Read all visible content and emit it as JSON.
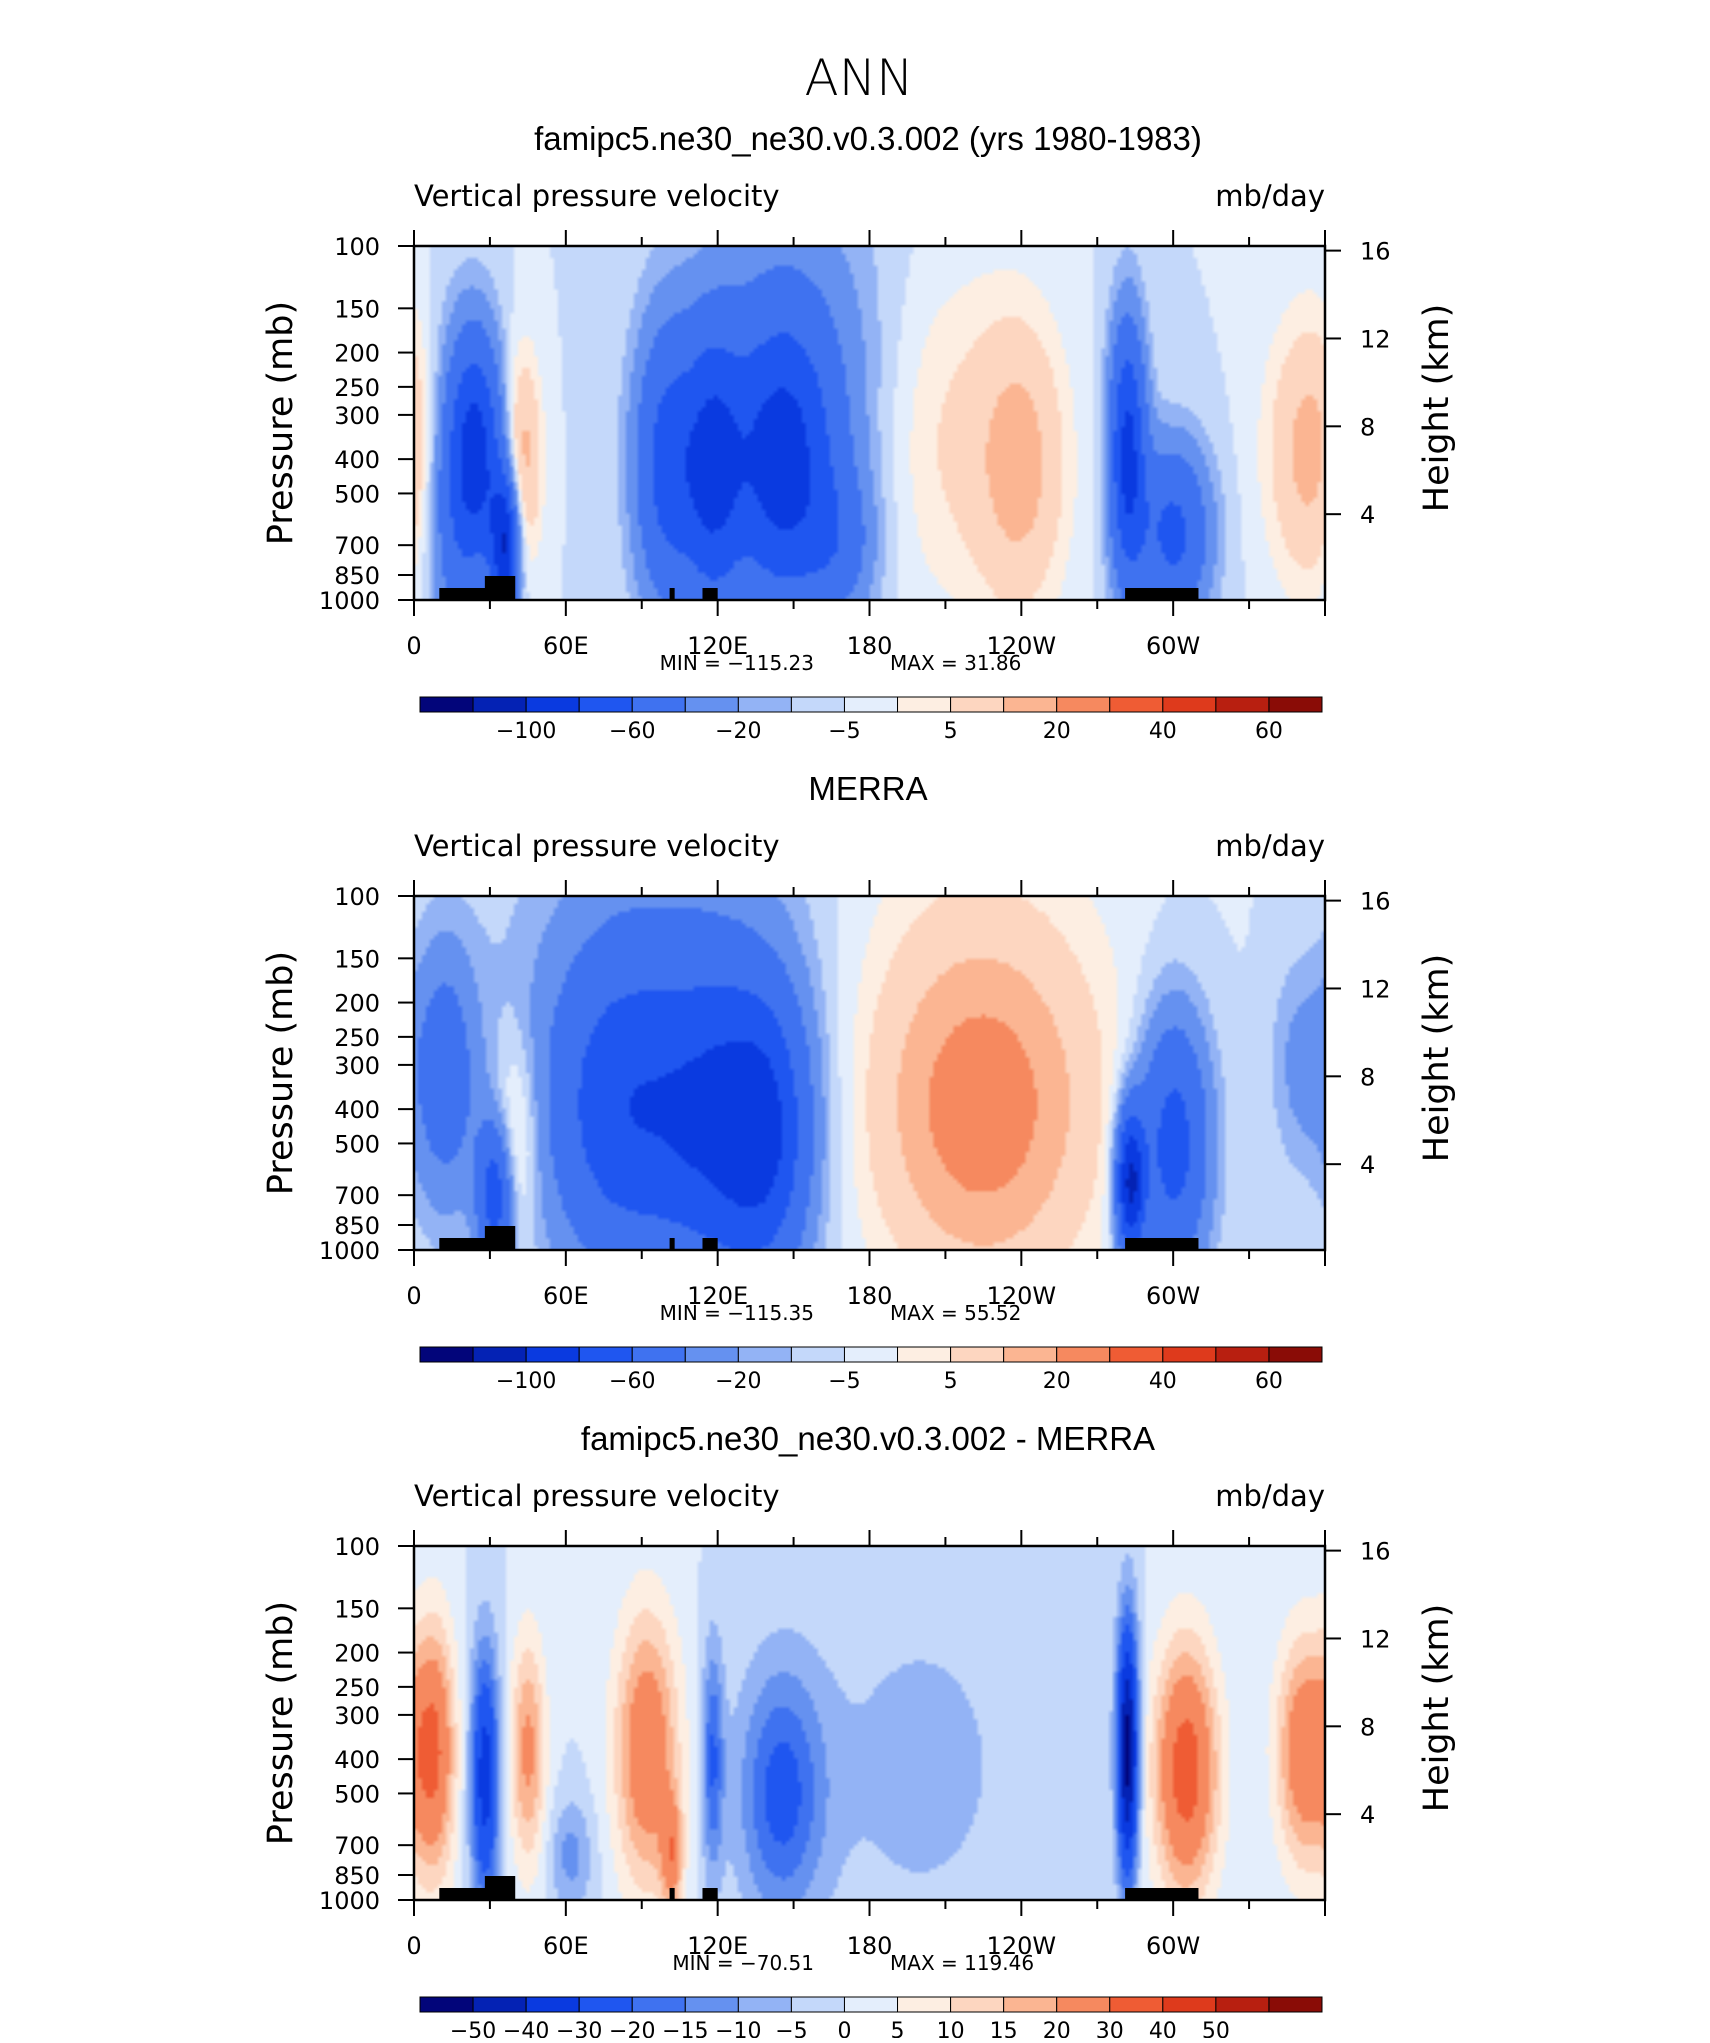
{
  "figure": {
    "season": "ANN",
    "panel_titles": [
      "famipc5.ne30_ne30.v0.3.002 (yrs 1980-1983)",
      "MERRA",
      "famipc5.ne30_ne30.v0.3.002 - MERRA"
    ]
  },
  "colors": {
    "abs_scale": [
      "#02057a",
      "#0422b4",
      "#0a3ae0",
      "#1f56f0",
      "#3f72f0",
      "#6591f0",
      "#93b3f5",
      "#c4d8fa",
      "#e4eefc",
      "#fdeee2",
      "#fdd6c0",
      "#fbb592",
      "#f6895f",
      "#ef5c34",
      "#de3a1c",
      "#b81f10",
      "#8a0c06"
    ],
    "diff_scale": [
      "#02057a",
      "#0422b4",
      "#0a3ae0",
      "#1f56f0",
      "#3f72f0",
      "#6591f0",
      "#93b3f5",
      "#c4d8fa",
      "#e4eefc",
      "#fdeee2",
      "#fdd6c0",
      "#fbb592",
      "#f6895f",
      "#ef5c34",
      "#de3a1c",
      "#b81f10",
      "#8a0c06"
    ],
    "topography": "#000000"
  },
  "chart_data": [
    {
      "type": "heatmap",
      "title": "famipc5.ne30_ne30.v0.3.002 (yrs 1980-1983)",
      "subtitle_left": "Vertical pressure velocity",
      "subtitle_right": "mb/day",
      "xlabel": "",
      "ylabel": "Pressure (mb)",
      "ylabel_right": "Height (km)",
      "x_ticks": [
        "0",
        "60E",
        "120E",
        "180",
        "120W",
        "60W"
      ],
      "x_tick_values": [
        0,
        60,
        120,
        180,
        240,
        300
      ],
      "xlim": [
        0,
        360
      ],
      "y_ticks": [
        "100",
        "150",
        "200",
        "250",
        "300",
        "400",
        "500",
        "700",
        "850",
        "1000"
      ],
      "y_tick_values": [
        100,
        150,
        200,
        250,
        300,
        400,
        500,
        700,
        850,
        1000
      ],
      "ylim": [
        1000,
        100
      ],
      "y_scale": "log",
      "y2_ticks": [
        "16",
        "12",
        "8",
        "4"
      ],
      "min_label": "MIN = −115.23",
      "max_label": "MAX =   31.86",
      "min": -115.23,
      "max": 31.86,
      "colorbar_labels": [
        "−100",
        "−60",
        "−20",
        "−5",
        "5",
        "20",
        "40",
        "60"
      ],
      "levels": [
        -120,
        -100,
        -80,
        -60,
        -40,
        -20,
        -10,
        -5,
        0,
        5,
        10,
        20,
        30,
        40,
        50,
        60,
        70
      ],
      "features": [
        {
          "lon": 25,
          "p": 380,
          "value": -60,
          "wlon": 7,
          "wp": 1.7
        },
        {
          "lon": 15,
          "p": 500,
          "value": -30,
          "wlon": 8,
          "wp": 2.0
        },
        {
          "lon": 36,
          "p": 700,
          "value": -75,
          "wlon": 4,
          "wp": 1.4
        },
        {
          "lon": 43,
          "p": 400,
          "value": 25,
          "wlon": 5,
          "wp": 1.6
        },
        {
          "lon": 100,
          "p": 420,
          "value": -45,
          "wlon": 9,
          "wp": 1.9
        },
        {
          "lon": 118,
          "p": 430,
          "value": -50,
          "wlon": 8,
          "wp": 1.9
        },
        {
          "lon": 145,
          "p": 420,
          "value": -55,
          "wlon": 14,
          "wp": 1.9
        },
        {
          "lon": 150,
          "p": 270,
          "value": -20,
          "wlon": 28,
          "wp": 2.6
        },
        {
          "lon": 168,
          "p": 700,
          "value": -20,
          "wlon": 10,
          "wp": 1.4
        },
        {
          "lon": 210,
          "p": 350,
          "value": 12,
          "wlon": 22,
          "wp": 2.2
        },
        {
          "lon": 240,
          "p": 420,
          "value": 22,
          "wlon": 12,
          "wp": 1.9
        },
        {
          "lon": 282,
          "p": 380,
          "value": -65,
          "wlon": 5,
          "wp": 1.8
        },
        {
          "lon": 300,
          "p": 650,
          "value": -45,
          "wlon": 10,
          "wp": 1.5
        },
        {
          "lon": 355,
          "p": 380,
          "value": 25,
          "wlon": 12,
          "wp": 1.8
        }
      ]
    },
    {
      "type": "heatmap",
      "title": "MERRA",
      "subtitle_left": "Vertical pressure velocity",
      "subtitle_right": "mb/day",
      "xlabel": "",
      "ylabel": "Pressure (mb)",
      "ylabel_right": "Height (km)",
      "x_ticks": [
        "0",
        "60E",
        "120E",
        "180",
        "120W",
        "60W"
      ],
      "x_tick_values": [
        0,
        60,
        120,
        180,
        240,
        300
      ],
      "xlim": [
        0,
        360
      ],
      "y_ticks": [
        "100",
        "150",
        "200",
        "250",
        "300",
        "400",
        "500",
        "700",
        "850",
        "1000"
      ],
      "y_tick_values": [
        100,
        150,
        200,
        250,
        300,
        400,
        500,
        700,
        850,
        1000
      ],
      "ylim": [
        1000,
        100
      ],
      "y_scale": "log",
      "y2_ticks": [
        "16",
        "12",
        "8",
        "4"
      ],
      "min_label": "MIN = −115.35",
      "max_label": "MAX =   55.52",
      "min": -115.35,
      "max": 55.52,
      "colorbar_labels": [
        "−100",
        "−60",
        "−20",
        "−5",
        "5",
        "20",
        "40",
        "60"
      ],
      "levels": [
        -120,
        -100,
        -80,
        -60,
        -40,
        -20,
        -10,
        -5,
        0,
        5,
        10,
        20,
        30,
        40,
        50,
        60,
        70
      ],
      "features": [
        {
          "lon": 12,
          "p": 320,
          "value": -30,
          "wlon": 9,
          "wp": 1.8
        },
        {
          "lon": 32,
          "p": 700,
          "value": -50,
          "wlon": 5,
          "wp": 1.4
        },
        {
          "lon": 40,
          "p": 500,
          "value": 18,
          "wlon": 6,
          "wp": 1.6
        },
        {
          "lon": 80,
          "p": 420,
          "value": -38,
          "wlon": 18,
          "wp": 2.0
        },
        {
          "lon": 120,
          "p": 450,
          "value": -45,
          "wlon": 18,
          "wp": 2.0
        },
        {
          "lon": 140,
          "p": 480,
          "value": -40,
          "wlon": 12,
          "wp": 1.9
        },
        {
          "lon": 100,
          "p": 250,
          "value": -20,
          "wlon": 40,
          "wp": 2.8
        },
        {
          "lon": 225,
          "p": 420,
          "value": 30,
          "wlon": 28,
          "wp": 2.1
        },
        {
          "lon": 220,
          "p": 250,
          "value": 10,
          "wlon": 40,
          "wp": 2.8
        },
        {
          "lon": 283,
          "p": 650,
          "value": -80,
          "wlon": 4,
          "wp": 1.4
        },
        {
          "lon": 300,
          "p": 500,
          "value": -50,
          "wlon": 10,
          "wp": 1.8
        },
        {
          "lon": 350,
          "p": 300,
          "value": -12,
          "wlon": 8,
          "wp": 1.6
        }
      ]
    },
    {
      "type": "heatmap",
      "title": "famipc5.ne30_ne30.v0.3.002 - MERRA",
      "subtitle_left": "Vertical pressure velocity",
      "subtitle_right": "mb/day",
      "xlabel": "",
      "ylabel": "Pressure (mb)",
      "ylabel_right": "Height (km)",
      "x_ticks": [
        "0",
        "60E",
        "120E",
        "180",
        "120W",
        "60W"
      ],
      "x_tick_values": [
        0,
        60,
        120,
        180,
        240,
        300
      ],
      "xlim": [
        0,
        360
      ],
      "y_ticks": [
        "100",
        "150",
        "200",
        "250",
        "300",
        "400",
        "500",
        "700",
        "850",
        "1000"
      ],
      "y_tick_values": [
        100,
        150,
        200,
        250,
        300,
        400,
        500,
        700,
        850,
        1000
      ],
      "ylim": [
        1000,
        100
      ],
      "y_scale": "log",
      "y2_ticks": [
        "16",
        "12",
        "8",
        "4"
      ],
      "min_label": "MIN = −70.51",
      "max_label": "MAX = 119.46",
      "min": -70.51,
      "max": 119.46,
      "colorbar_labels": [
        "−50",
        "−40",
        "−30",
        "−20",
        "−15",
        "−10",
        "−5",
        "0",
        "5",
        "10",
        "15",
        "20",
        "30",
        "40",
        "50"
      ],
      "levels": [
        -60,
        -50,
        -40,
        -30,
        -20,
        -15,
        -10,
        -5,
        0,
        5,
        10,
        15,
        20,
        30,
        40,
        50,
        60
      ],
      "features": [
        {
          "lon": 8,
          "p": 380,
          "value": 30,
          "wlon": 6,
          "wp": 1.8
        },
        {
          "lon": 28,
          "p": 450,
          "value": -35,
          "wlon": 4,
          "wp": 1.8
        },
        {
          "lon": 45,
          "p": 380,
          "value": 22,
          "wlon": 5,
          "wp": 1.7
        },
        {
          "lon": 62,
          "p": 750,
          "value": -12,
          "wlon": 6,
          "wp": 1.3
        },
        {
          "lon": 92,
          "p": 380,
          "value": 28,
          "wlon": 9,
          "wp": 1.9
        },
        {
          "lon": 102,
          "p": 750,
          "value": 22,
          "wlon": 3,
          "wp": 1.3
        },
        {
          "lon": 118,
          "p": 400,
          "value": -20,
          "wlon": 3,
          "wp": 1.7
        },
        {
          "lon": 145,
          "p": 500,
          "value": -22,
          "wlon": 12,
          "wp": 1.8
        },
        {
          "lon": 200,
          "p": 420,
          "value": -7,
          "wlon": 30,
          "wp": 2.3
        },
        {
          "lon": 282,
          "p": 380,
          "value": -55,
          "wlon": 3,
          "wp": 1.8
        },
        {
          "lon": 305,
          "p": 430,
          "value": 35,
          "wlon": 9,
          "wp": 1.8
        },
        {
          "lon": 352,
          "p": 380,
          "value": 28,
          "wlon": 8,
          "wp": 1.7
        }
      ]
    }
  ]
}
